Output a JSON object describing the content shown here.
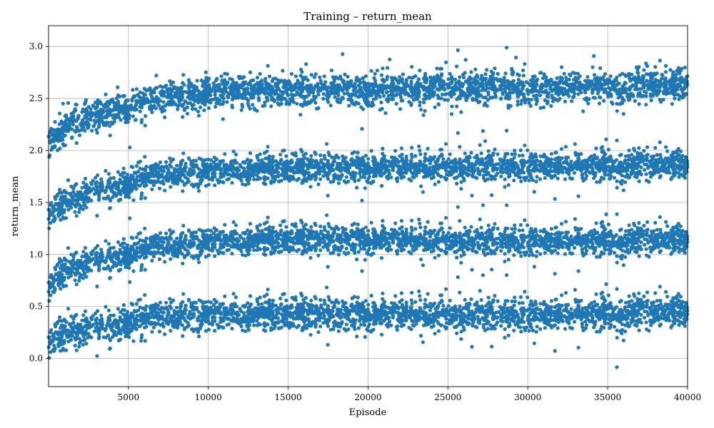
{
  "chart_data": {
    "type": "scatter",
    "title": "Training – return_mean",
    "xlabel": "Episode",
    "ylabel": "return_mean",
    "xlim": [
      1,
      40000
    ],
    "ylim": [
      -0.27,
      3.2
    ],
    "xticks": [
      5000,
      10000,
      15000,
      20000,
      25000,
      30000,
      35000,
      40000
    ],
    "yticks": [
      0.0,
      0.5,
      1.0,
      1.5,
      2.0,
      2.5,
      3.0
    ],
    "grid": true,
    "color": "#1f77b4",
    "n_points_approx": 40000,
    "series": [
      {
        "band": "top",
        "x": [
          1,
          1000,
          2000,
          3000,
          4000,
          5000,
          6000,
          7000,
          8000,
          10000,
          12000,
          15000,
          20000,
          25000,
          30000,
          35000,
          40000
        ],
        "y": [
          2.08,
          2.22,
          2.28,
          2.33,
          2.37,
          2.41,
          2.47,
          2.5,
          2.53,
          2.55,
          2.57,
          2.58,
          2.58,
          2.6,
          2.61,
          2.61,
          2.62
        ],
        "spread": 0.1
      },
      {
        "band": "second",
        "x": [
          1,
          1000,
          2000,
          3000,
          4000,
          5000,
          6000,
          7000,
          8000,
          10000,
          12000,
          15000,
          20000,
          25000,
          30000,
          35000,
          40000
        ],
        "y": [
          1.38,
          1.5,
          1.56,
          1.62,
          1.65,
          1.68,
          1.75,
          1.78,
          1.8,
          1.8,
          1.81,
          1.83,
          1.83,
          1.84,
          1.85,
          1.85,
          1.86
        ],
        "spread": 0.09
      },
      {
        "band": "third",
        "x": [
          1,
          1000,
          2000,
          3000,
          4000,
          5000,
          6000,
          7000,
          8000,
          10000,
          12000,
          15000,
          20000,
          25000,
          30000,
          35000,
          40000
        ],
        "y": [
          0.68,
          0.85,
          0.9,
          0.94,
          0.98,
          1.0,
          1.06,
          1.1,
          1.1,
          1.12,
          1.13,
          1.15,
          1.14,
          1.13,
          1.13,
          1.13,
          1.14
        ],
        "spread": 0.09
      },
      {
        "band": "bottom",
        "x": [
          1,
          1000,
          2000,
          3000,
          4000,
          5000,
          6000,
          7000,
          8000,
          10000,
          12000,
          15000,
          20000,
          25000,
          30000,
          35000,
          40000
        ],
        "y": [
          0.15,
          0.25,
          0.28,
          0.3,
          0.32,
          0.35,
          0.4,
          0.42,
          0.43,
          0.42,
          0.42,
          0.43,
          0.42,
          0.42,
          0.42,
          0.43,
          0.45
        ],
        "spread": 0.1
      }
    ]
  }
}
